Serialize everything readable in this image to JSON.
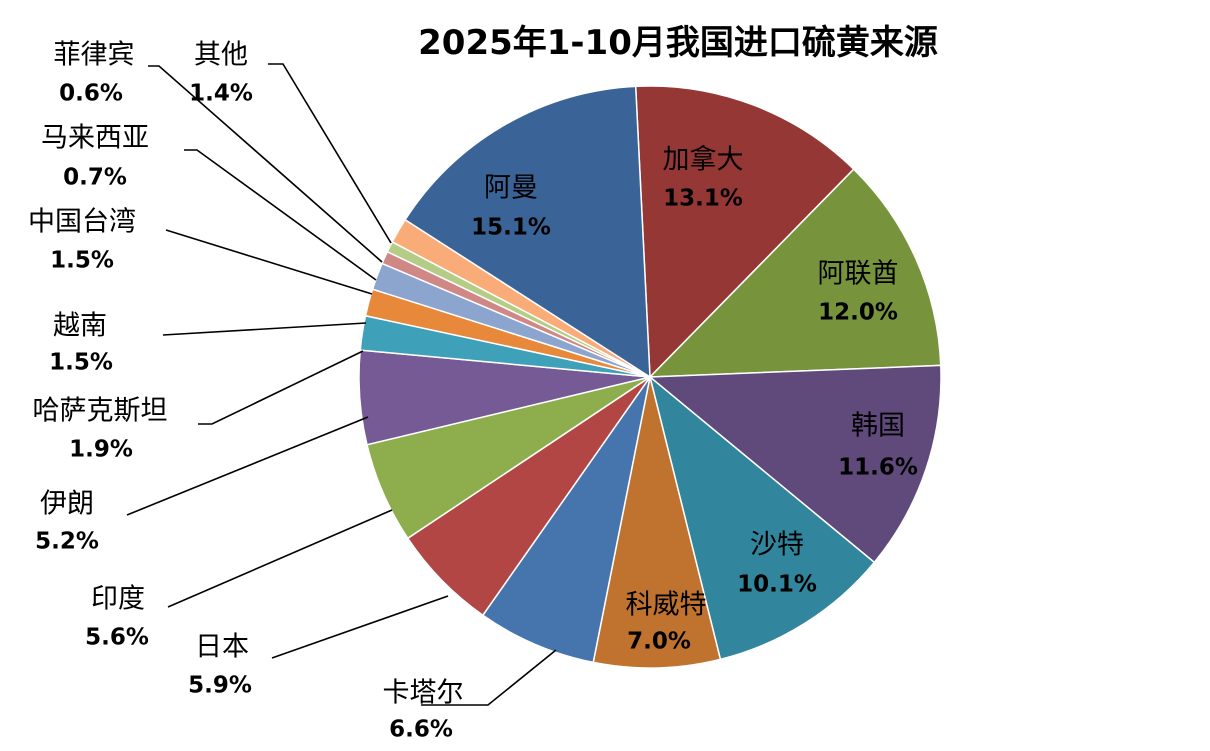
{
  "chart_data": {
    "type": "pie",
    "title": "2025年1-10月我国进口硫黄来源",
    "unit": "%",
    "slices": [
      {
        "name": "加拿大",
        "value": 13.1,
        "label": "13.1%",
        "color": "#953735"
      },
      {
        "name": "阿联酋",
        "value": 12.0,
        "label": "12.0%",
        "color": "#77933C"
      },
      {
        "name": "韩国",
        "value": 11.6,
        "label": "11.6%",
        "color": "#604A7B"
      },
      {
        "name": "沙特",
        "value": 10.1,
        "label": "10.1%",
        "color": "#31859C"
      },
      {
        "name": "科威特",
        "value": 7.0,
        "label": "7.0%",
        "color": "#C0732F"
      },
      {
        "name": "卡塔尔",
        "value": 6.6,
        "label": "6.6%",
        "color": "#4675AE"
      },
      {
        "name": "日本",
        "value": 5.9,
        "label": "5.9%",
        "color": "#B14644"
      },
      {
        "name": "印度",
        "value": 5.6,
        "label": "5.6%",
        "color": "#8EAE4E"
      },
      {
        "name": "伊朗",
        "value": 5.2,
        "label": "5.2%",
        "color": "#765A96"
      },
      {
        "name": "哈萨克斯坦",
        "value": 1.9,
        "label": "1.9%",
        "color": "#3FA1B9"
      },
      {
        "name": "越南",
        "value": 1.5,
        "label": "1.5%",
        "color": "#E8883A"
      },
      {
        "name": "中国台湾",
        "value": 1.5,
        "label": "1.5%",
        "color": "#8CA5CF"
      },
      {
        "name": "马来西亚",
        "value": 0.7,
        "label": "0.7%",
        "color": "#D08886"
      },
      {
        "name": "菲律宾",
        "value": 0.6,
        "label": "0.6%",
        "color": "#B5CC87"
      },
      {
        "name": "其他",
        "value": 1.4,
        "label": "1.4%",
        "color": "#F9AB78"
      },
      {
        "name": "阿曼",
        "value": 15.1,
        "label": "15.1%",
        "color": "#3A6497"
      }
    ],
    "legend": "none"
  }
}
